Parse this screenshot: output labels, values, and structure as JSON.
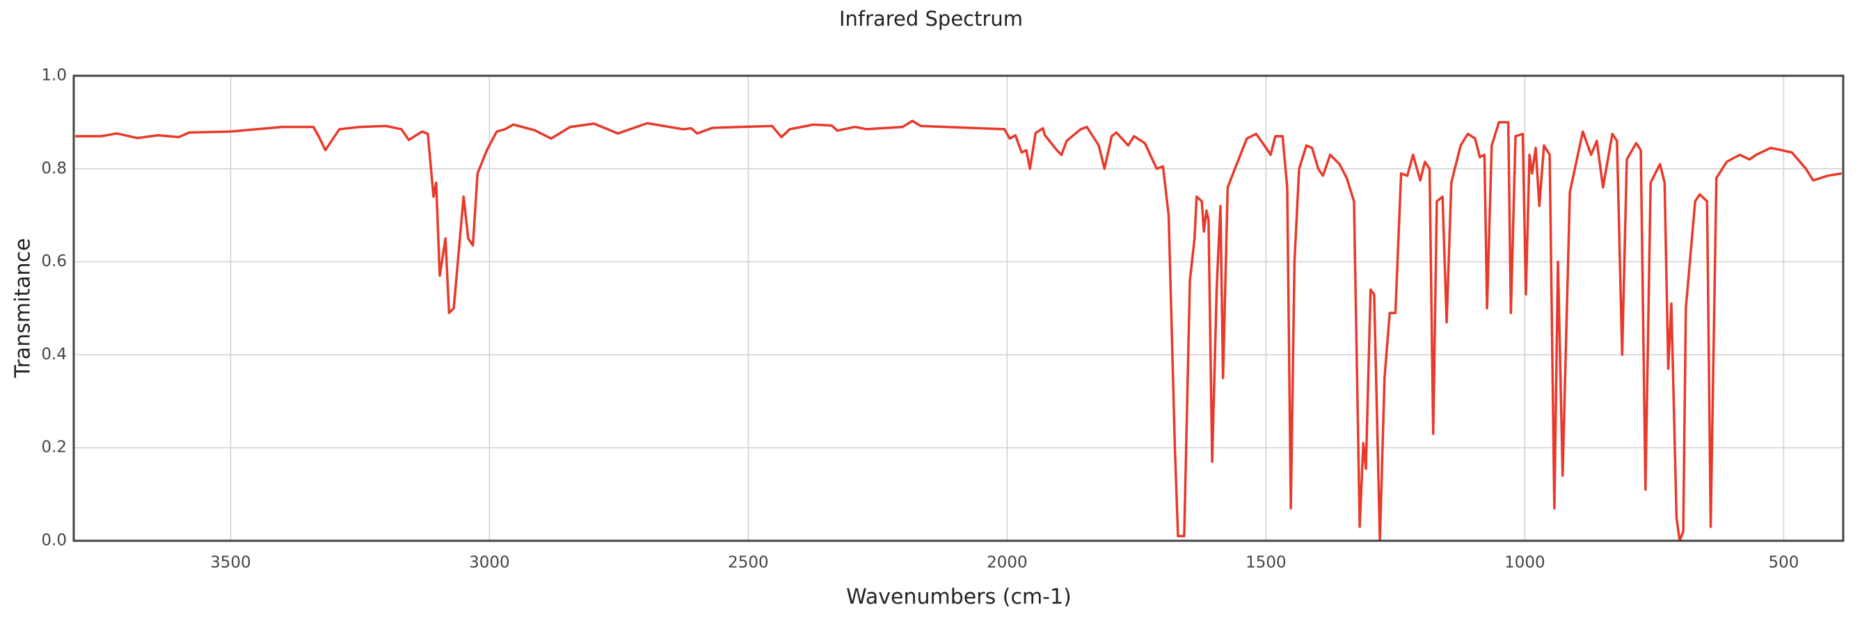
{
  "chart_data": {
    "type": "line",
    "title": "Infrared Spectrum",
    "x_label": "Wavenumbers (cm-1)",
    "y_label": "Transmitance",
    "color": "#e8392a",
    "grid": true,
    "xlim": [
      3803,
      385
    ],
    "xticks": [
      3500,
      3000,
      2500,
      2000,
      1500,
      1000,
      500
    ],
    "ylim": [
      0,
      1
    ],
    "yticks": [
      {
        "value": 0,
        "label": "0.0"
      },
      0.2,
      0.4,
      0.6,
      0.8,
      {
        "value": 1,
        "label": "1.0"
      }
    ],
    "x": [
      3800,
      3750,
      3720,
      3680,
      3640,
      3600,
      3580,
      3500,
      3400,
      3340,
      3330,
      3317,
      3290,
      3250,
      3200,
      3170,
      3156,
      3130,
      3119,
      3108,
      3103,
      3096,
      3085,
      3078,
      3069,
      3050,
      3041,
      3032,
      3023,
      3005,
      2986,
      2970,
      2954,
      2913,
      2881,
      2844,
      2798,
      2752,
      2695,
      2626,
      2610,
      2599,
      2569,
      2454,
      2436,
      2420,
      2374,
      2339,
      2328,
      2294,
      2271,
      2202,
      2183,
      2167,
      2005,
      1995,
      1984,
      1972,
      1963,
      1956,
      1945,
      1931,
      1927,
      1904,
      1895,
      1885,
      1858,
      1846,
      1823,
      1812,
      1798,
      1789,
      1766,
      1755,
      1734,
      1711,
      1699,
      1688,
      1676,
      1670,
      1658,
      1647,
      1638,
      1634,
      1624,
      1620,
      1615,
      1611,
      1604,
      1595,
      1588,
      1583,
      1574,
      1560,
      1537,
      1519,
      1503,
      1491,
      1482,
      1468,
      1459,
      1452,
      1445,
      1436,
      1422,
      1411,
      1399,
      1390,
      1376,
      1358,
      1344,
      1330,
      1319,
      1312,
      1307,
      1298,
      1291,
      1280,
      1271,
      1261,
      1250,
      1239,
      1227,
      1216,
      1202,
      1193,
      1184,
      1177,
      1170,
      1159,
      1151,
      1142,
      1124,
      1110,
      1096,
      1087,
      1078,
      1073,
      1064,
      1050,
      1032,
      1027,
      1018,
      1004,
      998,
      991,
      986,
      979,
      972,
      963,
      952,
      943,
      936,
      927,
      913,
      888,
      872,
      861,
      849,
      831,
      822,
      812,
      803,
      785,
      776,
      767,
      757,
      739,
      730,
      723,
      717,
      707,
      701,
      694,
      689,
      671,
      662,
      648,
      641,
      630,
      610,
      585,
      566,
      553,
      525,
      484,
      457,
      443,
      415,
      388
    ],
    "values": [
      0.87,
      0.87,
      0.876,
      0.866,
      0.872,
      0.868,
      0.878,
      0.88,
      0.89,
      0.89,
      0.87,
      0.84,
      0.885,
      0.89,
      0.892,
      0.885,
      0.862,
      0.88,
      0.875,
      0.74,
      0.77,
      0.57,
      0.65,
      0.49,
      0.5,
      0.74,
      0.65,
      0.635,
      0.79,
      0.84,
      0.88,
      0.885,
      0.895,
      0.883,
      0.865,
      0.89,
      0.897,
      0.876,
      0.898,
      0.885,
      0.887,
      0.876,
      0.888,
      0.892,
      0.868,
      0.885,
      0.895,
      0.893,
      0.882,
      0.89,
      0.885,
      0.89,
      0.903,
      0.892,
      0.885,
      0.865,
      0.872,
      0.835,
      0.84,
      0.8,
      0.877,
      0.887,
      0.872,
      0.84,
      0.83,
      0.86,
      0.885,
      0.89,
      0.85,
      0.8,
      0.87,
      0.878,
      0.85,
      0.87,
      0.855,
      0.8,
      0.805,
      0.7,
      0.2,
      0.01,
      0.01,
      0.56,
      0.65,
      0.74,
      0.73,
      0.665,
      0.71,
      0.69,
      0.17,
      0.55,
      0.72,
      0.35,
      0.76,
      0.8,
      0.865,
      0.875,
      0.85,
      0.83,
      0.87,
      0.87,
      0.76,
      0.07,
      0.6,
      0.8,
      0.85,
      0.845,
      0.8,
      0.785,
      0.83,
      0.81,
      0.78,
      0.73,
      0.03,
      0.21,
      0.155,
      0.54,
      0.53,
      0.0,
      0.35,
      0.49,
      0.49,
      0.79,
      0.785,
      0.83,
      0.775,
      0.815,
      0.8,
      0.23,
      0.73,
      0.74,
      0.47,
      0.77,
      0.85,
      0.875,
      0.865,
      0.825,
      0.83,
      0.5,
      0.85,
      0.9,
      0.9,
      0.49,
      0.87,
      0.875,
      0.53,
      0.83,
      0.79,
      0.845,
      0.72,
      0.85,
      0.83,
      0.07,
      0.6,
      0.14,
      0.75,
      0.88,
      0.83,
      0.86,
      0.76,
      0.875,
      0.86,
      0.4,
      0.82,
      0.855,
      0.84,
      0.11,
      0.77,
      0.81,
      0.77,
      0.37,
      0.51,
      0.05,
      0.0,
      0.02,
      0.5,
      0.73,
      0.745,
      0.73,
      0.03,
      0.78,
      0.815,
      0.83,
      0.82,
      0.83,
      0.845,
      0.835,
      0.8,
      0.775,
      0.785,
      0.79
    ]
  }
}
